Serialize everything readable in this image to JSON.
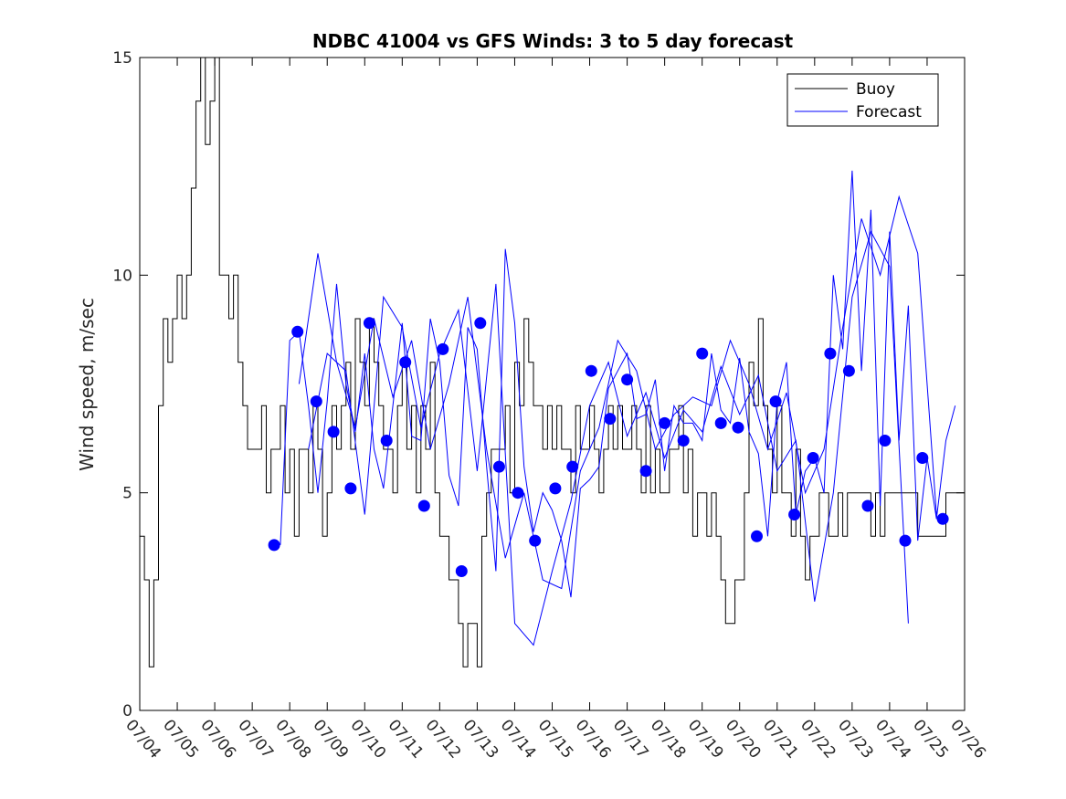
{
  "chart_data": {
    "type": "line",
    "title": "NDBC 41004 vs GFS Winds: 3 to 5 day forecast",
    "xlabel": "",
    "ylabel": "Wind speed, m/sec",
    "xlim": [
      "07/04",
      "07/26"
    ],
    "ylim": [
      0,
      15
    ],
    "y_ticks": [
      0,
      5,
      10,
      15
    ],
    "x_tick_labels": [
      "07/04",
      "07/05",
      "07/06",
      "07/07",
      "07/08",
      "07/09",
      "07/10",
      "07/11",
      "07/12",
      "07/13",
      "07/14",
      "07/15",
      "07/16",
      "07/17",
      "07/18",
      "07/19",
      "07/20",
      "07/21",
      "07/22",
      "07/23",
      "07/24",
      "07/25",
      "07/26"
    ],
    "grid": false,
    "legend": {
      "position": "top-right",
      "entries": [
        "Buoy",
        "Forecast"
      ]
    },
    "colors": {
      "buoy": "#000000",
      "forecast": "#0000ff",
      "markers": "#0000ff"
    },
    "series": [
      {
        "name": "Buoy",
        "style": "step-line",
        "x": [
          "07/04 00:00",
          "07/04 03:00",
          "07/04 06:00",
          "07/04 09:00",
          "07/04 12:00",
          "07/04 15:00",
          "07/04 18:00",
          "07/04 21:00",
          "07/05 00:00",
          "07/05 03:00",
          "07/05 06:00",
          "07/05 09:00",
          "07/05 12:00",
          "07/05 15:00",
          "07/05 18:00",
          "07/05 21:00",
          "07/06 00:00",
          "07/06 03:00",
          "07/06 06:00",
          "07/06 09:00",
          "07/06 12:00",
          "07/06 15:00",
          "07/06 18:00",
          "07/06 21:00",
          "07/07 00:00",
          "07/07 03:00",
          "07/07 06:00",
          "07/07 09:00",
          "07/07 12:00",
          "07/07 15:00",
          "07/07 18:00",
          "07/07 21:00",
          "07/08 00:00",
          "07/08 03:00",
          "07/08 06:00",
          "07/08 09:00",
          "07/08 12:00",
          "07/08 15:00",
          "07/08 18:00",
          "07/08 21:00",
          "07/09 00:00",
          "07/09 03:00",
          "07/09 06:00",
          "07/09 09:00",
          "07/09 12:00",
          "07/09 15:00",
          "07/09 18:00",
          "07/09 21:00",
          "07/10 00:00",
          "07/10 03:00",
          "07/10 06:00",
          "07/10 09:00",
          "07/10 12:00",
          "07/10 15:00",
          "07/10 18:00",
          "07/10 21:00",
          "07/11 00:00",
          "07/11 03:00",
          "07/11 06:00",
          "07/11 09:00",
          "07/11 12:00",
          "07/11 15:00",
          "07/11 18:00",
          "07/11 21:00",
          "07/12 00:00",
          "07/12 03:00",
          "07/12 06:00",
          "07/12 09:00",
          "07/12 12:00",
          "07/12 15:00",
          "07/12 18:00",
          "07/12 21:00",
          "07/13 00:00",
          "07/13 03:00",
          "07/13 06:00",
          "07/13 09:00",
          "07/13 12:00",
          "07/13 15:00",
          "07/13 18:00",
          "07/13 21:00",
          "07/14 00:00",
          "07/14 03:00",
          "07/14 06:00",
          "07/14 09:00",
          "07/14 12:00",
          "07/14 15:00",
          "07/14 18:00",
          "07/14 21:00",
          "07/15 00:00",
          "07/15 03:00",
          "07/15 06:00",
          "07/15 09:00",
          "07/15 12:00",
          "07/15 15:00",
          "07/15 18:00",
          "07/15 21:00",
          "07/16 00:00",
          "07/16 03:00",
          "07/16 06:00",
          "07/16 09:00",
          "07/16 12:00",
          "07/16 15:00",
          "07/16 18:00",
          "07/16 21:00",
          "07/17 00:00",
          "07/17 03:00",
          "07/17 06:00",
          "07/17 09:00",
          "07/17 12:00",
          "07/17 15:00",
          "07/17 18:00",
          "07/17 21:00",
          "07/18 00:00",
          "07/18 03:00",
          "07/18 06:00",
          "07/18 09:00",
          "07/18 12:00",
          "07/18 15:00",
          "07/18 18:00",
          "07/18 21:00",
          "07/19 00:00",
          "07/19 03:00",
          "07/19 06:00",
          "07/19 09:00",
          "07/19 12:00",
          "07/19 15:00",
          "07/19 18:00",
          "07/19 21:00",
          "07/20 00:00",
          "07/20 03:00",
          "07/20 06:00",
          "07/20 09:00",
          "07/20 12:00",
          "07/20 15:00",
          "07/20 18:00",
          "07/20 21:00",
          "07/21 00:00",
          "07/21 03:00",
          "07/21 06:00",
          "07/21 09:00",
          "07/21 12:00",
          "07/21 15:00",
          "07/21 18:00",
          "07/21 21:00",
          "07/22 00:00",
          "07/22 03:00",
          "07/22 06:00",
          "07/22 09:00",
          "07/22 12:00",
          "07/22 15:00",
          "07/22 18:00",
          "07/22 21:00",
          "07/23 00:00",
          "07/23 03:00",
          "07/23 06:00",
          "07/23 09:00",
          "07/23 12:00",
          "07/23 15:00",
          "07/23 18:00",
          "07/23 21:00",
          "07/24 00:00",
          "07/24 03:00",
          "07/24 06:00",
          "07/24 09:00",
          "07/24 12:00",
          "07/24 15:00",
          "07/24 18:00",
          "07/24 21:00",
          "07/25 00:00",
          "07/25 03:00",
          "07/25 06:00",
          "07/25 09:00",
          "07/25 12:00",
          "07/25 15:00",
          "07/25 18:00",
          "07/25 21:00"
        ],
        "values": [
          4,
          3,
          1,
          3,
          7,
          9,
          8,
          9,
          10,
          9,
          10,
          12,
          14,
          15,
          13,
          14,
          15,
          10,
          10,
          9,
          10,
          8,
          7,
          6,
          6,
          6,
          7,
          5,
          6,
          6,
          7,
          5,
          6,
          4,
          6,
          6,
          5,
          7,
          6,
          4,
          5,
          7,
          6,
          7,
          8,
          6,
          9,
          8,
          7,
          9,
          8,
          7,
          6,
          6,
          5,
          7,
          8,
          6,
          7,
          5,
          7,
          6,
          8,
          5,
          4,
          4,
          3,
          3,
          2,
          1,
          2,
          2,
          1,
          4,
          5,
          6,
          6,
          6,
          7,
          5,
          8,
          7,
          9,
          8,
          7,
          7,
          6,
          7,
          6,
          7,
          6,
          6,
          5,
          7,
          6,
          6,
          7,
          6,
          5,
          6,
          7,
          6,
          7,
          6,
          6,
          7,
          6,
          5,
          7,
          5,
          6,
          5,
          5,
          6,
          6,
          7,
          5,
          6,
          4,
          5,
          5,
          4,
          5,
          4,
          3,
          2,
          2,
          3,
          3,
          5,
          8,
          7,
          9,
          7,
          6,
          5,
          7,
          5,
          5,
          4,
          6,
          4,
          3,
          4,
          4,
          5,
          5,
          4,
          4,
          5,
          4,
          5,
          5,
          5,
          5,
          5,
          4,
          5,
          4,
          5,
          5,
          5,
          5,
          5,
          5,
          5,
          4,
          4,
          4,
          4,
          4,
          4,
          5,
          5,
          5,
          5
        ]
      },
      {
        "name": "Forecast",
        "style": "multi-run-lines",
        "runs": [
          {
            "x": [
              "07/07 18:00",
              "07/08 00:00",
              "07/08 06:00",
              "07/08 12:00",
              "07/08 18:00",
              "07/09 00:00",
              "07/09 06:00",
              "07/09 12:00",
              "07/09 18:00",
              "07/10 00:00",
              "07/10 06:00",
              "07/10 12:00",
              "07/10 18:00",
              "07/11 00:00",
              "07/11 06:00",
              "07/11 12:00",
              "07/11 18:00",
              "07/12 00:00",
              "07/12 06:00",
              "07/12 12:00",
              "07/12 18:00",
              "07/13 00:00",
              "07/13 06:00",
              "07/13 12:00",
              "07/13 18:00",
              "07/14 00:00",
              "07/14 06:00",
              "07/14 12:00",
              "07/14 18:00",
              "07/15 00:00",
              "07/15 06:00",
              "07/15 12:00",
              "07/15 18:00",
              "07/16 00:00",
              "07/16 06:00",
              "07/16 12:00",
              "07/16 18:00",
              "07/17 00:00",
              "07/17 06:00",
              "07/17 12:00",
              "07/17 18:00",
              "07/18 00:00",
              "07/18 06:00",
              "07/18 12:00",
              "07/18 18:00",
              "07/19 00:00",
              "07/19 06:00",
              "07/19 12:00",
              "07/19 18:00",
              "07/20 00:00",
              "07/20 06:00",
              "07/20 12:00",
              "07/20 18:00",
              "07/21 00:00",
              "07/21 06:00",
              "07/21 12:00",
              "07/21 18:00",
              "07/22 00:00",
              "07/22 06:00",
              "07/22 12:00",
              "07/22 18:00",
              "07/23 00:00",
              "07/23 06:00",
              "07/23 12:00",
              "07/23 18:00",
              "07/24 00:00",
              "07/24 06:00",
              "07/24 12:00",
              "07/24 18:00",
              "07/25 00:00",
              "07/25 06:00",
              "07/25 12:00",
              "07/25 18:00"
            ],
            "values": [
              3.8,
              8.5,
              8.7,
              7.0,
              5.0,
              7.1,
              9.8,
              7.5,
              6.4,
              8.2,
              6.0,
              5.1,
              7.0,
              8.9,
              6.3,
              6.2,
              9.0,
              8.0,
              5.4,
              4.7,
              8.8,
              8.3,
              5.6,
              3.2,
              10.6,
              8.9,
              5.6,
              4.1,
              5.0,
              4.6,
              3.9,
              2.6,
              5.1,
              5.3,
              5.6,
              7.4,
              7.8,
              8.2,
              6.7,
              6.8,
              7.6,
              5.5,
              7.0,
              6.6,
              6.6,
              6.2,
              8.2,
              6.9,
              6.6,
              8.1,
              6.4,
              5.9,
              4.0,
              7.1,
              8.0,
              4.5,
              5.5,
              5.8,
              5.0,
              10.0,
              8.3,
              12.4,
              7.8,
              11.5,
              4.7,
              11.0,
              6.2,
              9.3,
              3.9,
              5.8,
              4.4,
              6.2,
              7.0
            ]
          },
          {
            "x": [
              "07/08 06:00",
              "07/08 18:00",
              "07/09 06:00",
              "07/09 18:00",
              "07/10 06:00",
              "07/10 18:00",
              "07/11 06:00",
              "07/11 18:00",
              "07/12 06:00",
              "07/12 18:00",
              "07/13 06:00",
              "07/13 18:00",
              "07/14 06:00",
              "07/14 18:00",
              "07/15 06:00",
              "07/15 18:00",
              "07/16 06:00",
              "07/16 18:00",
              "07/17 06:00",
              "07/17 18:00",
              "07/18 06:00",
              "07/18 18:00",
              "07/19 06:00",
              "07/19 18:00",
              "07/20 06:00",
              "07/20 18:00",
              "07/21 06:00",
              "07/21 18:00",
              "07/22 06:00",
              "07/22 18:00",
              "07/23 06:00",
              "07/23 18:00",
              "07/24 06:00",
              "07/24 18:00",
              "07/25 06:00"
            ],
            "values": [
              7.5,
              10.5,
              8.0,
              6.5,
              9.0,
              7.2,
              8.5,
              6.0,
              7.5,
              9.5,
              6.0,
              3.5,
              5.0,
              3.0,
              2.8,
              5.5,
              6.5,
              8.5,
              7.8,
              6.0,
              6.8,
              7.2,
              7.0,
              8.5,
              7.5,
              6.0,
              7.3,
              5.0,
              6.0,
              8.8,
              11.3,
              10.0,
              11.8,
              10.5,
              4.5
            ]
          },
          {
            "x": [
              "07/08 12:00",
              "07/09 00:00",
              "07/09 12:00",
              "07/10 00:00",
              "07/10 12:00",
              "07/11 00:00",
              "07/11 12:00",
              "07/12 00:00",
              "07/12 12:00",
              "07/13 00:00",
              "07/13 12:00",
              "07/14 00:00",
              "07/14 12:00",
              "07/15 00:00",
              "07/15 12:00",
              "07/16 00:00",
              "07/16 12:00",
              "07/17 00:00",
              "07/17 12:00",
              "07/18 00:00",
              "07/18 12:00",
              "07/19 00:00",
              "07/19 12:00",
              "07/20 00:00",
              "07/20 12:00",
              "07/21 00:00",
              "07/21 12:00",
              "07/22 00:00",
              "07/22 12:00",
              "07/23 00:00",
              "07/23 12:00",
              "07/24 00:00",
              "07/24 12:00"
            ],
            "values": [
              6.0,
              8.2,
              7.8,
              4.5,
              9.5,
              8.8,
              6.5,
              8.2,
              9.2,
              5.5,
              9.8,
              2.0,
              1.5,
              3.2,
              4.8,
              7.0,
              8.0,
              6.3,
              7.3,
              5.8,
              6.9,
              6.4,
              7.9,
              6.8,
              7.7,
              5.5,
              6.2,
              2.5,
              5.0,
              9.5,
              11.0,
              10.2,
              2.0
            ]
          }
        ]
      },
      {
        "name": "Forecast (markers)",
        "style": "markers",
        "x": [
          "07/07 14:00",
          "07/08 05:00",
          "07/08 17:00",
          "07/09 04:00",
          "07/09 15:00",
          "07/10 03:00",
          "07/10 14:00",
          "07/11 02:00",
          "07/11 14:00",
          "07/12 02:00",
          "07/12 14:00",
          "07/13 02:00",
          "07/13 14:00",
          "07/14 02:00",
          "07/14 13:00",
          "07/15 02:00",
          "07/15 13:00",
          "07/16 01:00",
          "07/16 13:00",
          "07/17 00:00",
          "07/17 12:00",
          "07/18 00:00",
          "07/18 12:00",
          "07/19 00:00",
          "07/19 12:00",
          "07/19 23:00",
          "07/20 11:00",
          "07/20 23:00",
          "07/21 11:00",
          "07/21 23:00",
          "07/22 10:00",
          "07/22 22:00",
          "07/23 10:00",
          "07/23 21:00",
          "07/24 10:00",
          "07/24 21:00",
          "07/25 10:00"
        ],
        "values": [
          3.8,
          8.7,
          7.1,
          6.4,
          5.1,
          8.9,
          6.2,
          8.0,
          4.7,
          8.3,
          3.2,
          8.9,
          5.6,
          5.0,
          3.9,
          5.1,
          5.6,
          7.8,
          6.7,
          7.6,
          5.5,
          6.6,
          6.2,
          8.2,
          6.6,
          6.5,
          4.0,
          7.1,
          4.5,
          5.8,
          8.2,
          7.8,
          4.7,
          6.2,
          3.9,
          5.8,
          4.4
        ]
      }
    ]
  }
}
